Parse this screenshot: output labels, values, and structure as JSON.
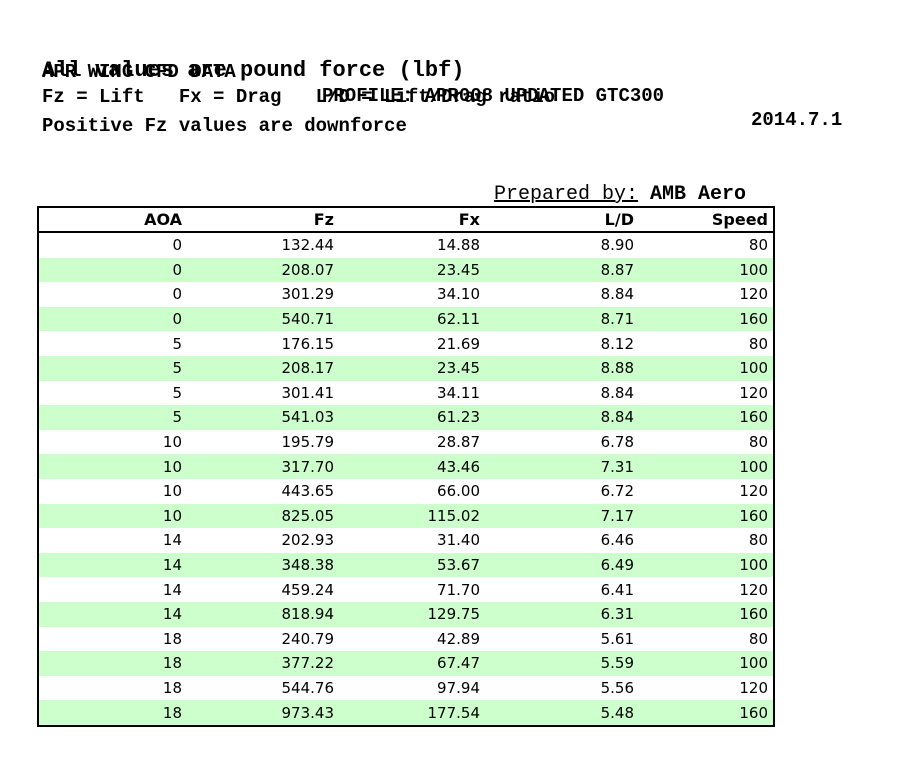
{
  "header": {
    "line1_left": "APR WING CFD DATA",
    "line1_mid": "PROFILE: APR008 UPDATED GTC300",
    "line1_right": "2014.7.1",
    "line2": "All values are pound force (lbf)",
    "line3": "Fz = Lift   Fx = Drag   L/D = Lift/Drag ratio",
    "line4": "Positive Fz values are downforce"
  },
  "prepared_by": {
    "label": "Prepared by:",
    "value": "AMB Aero"
  },
  "table": {
    "columns": [
      "AOA",
      "Fz",
      "Fx",
      "L/D",
      "Speed"
    ],
    "rows": [
      [
        "0",
        "132.44",
        "14.88",
        "8.90",
        "80"
      ],
      [
        "0",
        "208.07",
        "23.45",
        "8.87",
        "100"
      ],
      [
        "0",
        "301.29",
        "34.10",
        "8.84",
        "120"
      ],
      [
        "0",
        "540.71",
        "62.11",
        "8.71",
        "160"
      ],
      [
        "5",
        "176.15",
        "21.69",
        "8.12",
        "80"
      ],
      [
        "5",
        "208.17",
        "23.45",
        "8.88",
        "100"
      ],
      [
        "5",
        "301.41",
        "34.11",
        "8.84",
        "120"
      ],
      [
        "5",
        "541.03",
        "61.23",
        "8.84",
        "160"
      ],
      [
        "10",
        "195.79",
        "28.87",
        "6.78",
        "80"
      ],
      [
        "10",
        "317.70",
        "43.46",
        "7.31",
        "100"
      ],
      [
        "10",
        "443.65",
        "66.00",
        "6.72",
        "120"
      ],
      [
        "10",
        "825.05",
        "115.02",
        "7.17",
        "160"
      ],
      [
        "14",
        "202.93",
        "31.40",
        "6.46",
        "80"
      ],
      [
        "14",
        "348.38",
        "53.67",
        "6.49",
        "100"
      ],
      [
        "14",
        "459.24",
        "71.70",
        "6.41",
        "120"
      ],
      [
        "14",
        "818.94",
        "129.75",
        "6.31",
        "160"
      ],
      [
        "18",
        "240.79",
        "42.89",
        "5.61",
        "80"
      ],
      [
        "18",
        "377.22",
        "67.47",
        "5.59",
        "100"
      ],
      [
        "18",
        "544.76",
        "97.94",
        "5.56",
        "120"
      ],
      [
        "18",
        "973.43",
        "177.54",
        "5.48",
        "160"
      ]
    ]
  },
  "colors": {
    "row_stripe": "#ccffcc",
    "border": "#000000"
  }
}
